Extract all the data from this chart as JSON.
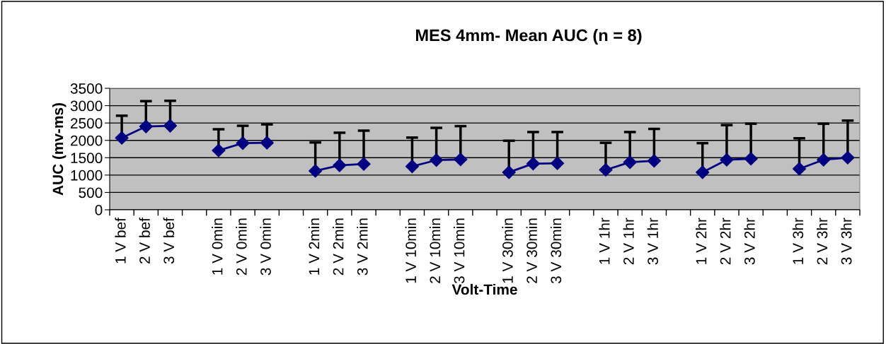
{
  "chart_data": {
    "type": "line",
    "title": "MES 4mm- Mean AUC (n = 8)",
    "xlabel": "Volt-Time",
    "ylabel": "AUC (mv-ms)",
    "categories": [
      "1 V bef",
      "2 V bef",
      "3 V bef",
      null,
      "1 V 0min",
      "2 V 0min",
      "3 V 0min",
      null,
      "1 V 2min",
      "2 V 2min",
      "3 V 2min",
      null,
      "1 V 10min",
      "2 V 10min",
      "3 V 10min",
      null,
      "1 V 30min",
      "2 V 30min",
      "3 V 30min",
      null,
      "1 V 1hr",
      "2 V 1hr",
      "3 V 1hr",
      null,
      "1 V 2hr",
      "2 V 2hr",
      "3 V 2hr",
      null,
      "1 V 3hr",
      "2 V 3hr",
      "3 V 3hr"
    ],
    "series": [
      {
        "color": "#000080",
        "values": [
          2070,
          2400,
          2420,
          null,
          1710,
          1920,
          1930,
          null,
          1120,
          1280,
          1320,
          null,
          1250,
          1430,
          1450,
          null,
          1080,
          1330,
          1340,
          null,
          1150,
          1370,
          1410,
          null,
          1080,
          1440,
          1470,
          null,
          1180,
          1440,
          1500
        ],
        "errors": [
          [
            2070,
            2710
          ],
          [
            2400,
            3130
          ],
          [
            2420,
            3140
          ],
          null,
          [
            1710,
            2320
          ],
          [
            1920,
            2420
          ],
          [
            1930,
            2460
          ],
          null,
          [
            1120,
            1940
          ],
          [
            1280,
            2220
          ],
          [
            1320,
            2280
          ],
          null,
          [
            1250,
            2080
          ],
          [
            1430,
            2360
          ],
          [
            1450,
            2410
          ],
          null,
          [
            1080,
            1990
          ],
          [
            1330,
            2240
          ],
          [
            1340,
            2240
          ],
          null,
          [
            1150,
            1930
          ],
          [
            1370,
            2240
          ],
          [
            1410,
            2330
          ],
          null,
          [
            1080,
            1920
          ],
          [
            1440,
            2440
          ],
          [
            1470,
            2480
          ],
          null,
          [
            1180,
            2060
          ],
          [
            1440,
            2480
          ],
          [
            1500,
            2570
          ]
        ]
      }
    ],
    "ylim": [
      0,
      3500
    ],
    "yticks": [
      0,
      500,
      1000,
      1500,
      2000,
      2500,
      3000,
      3500
    ],
    "grid": "y",
    "marker": "diamond",
    "line_style": "solid",
    "legend": false
  }
}
